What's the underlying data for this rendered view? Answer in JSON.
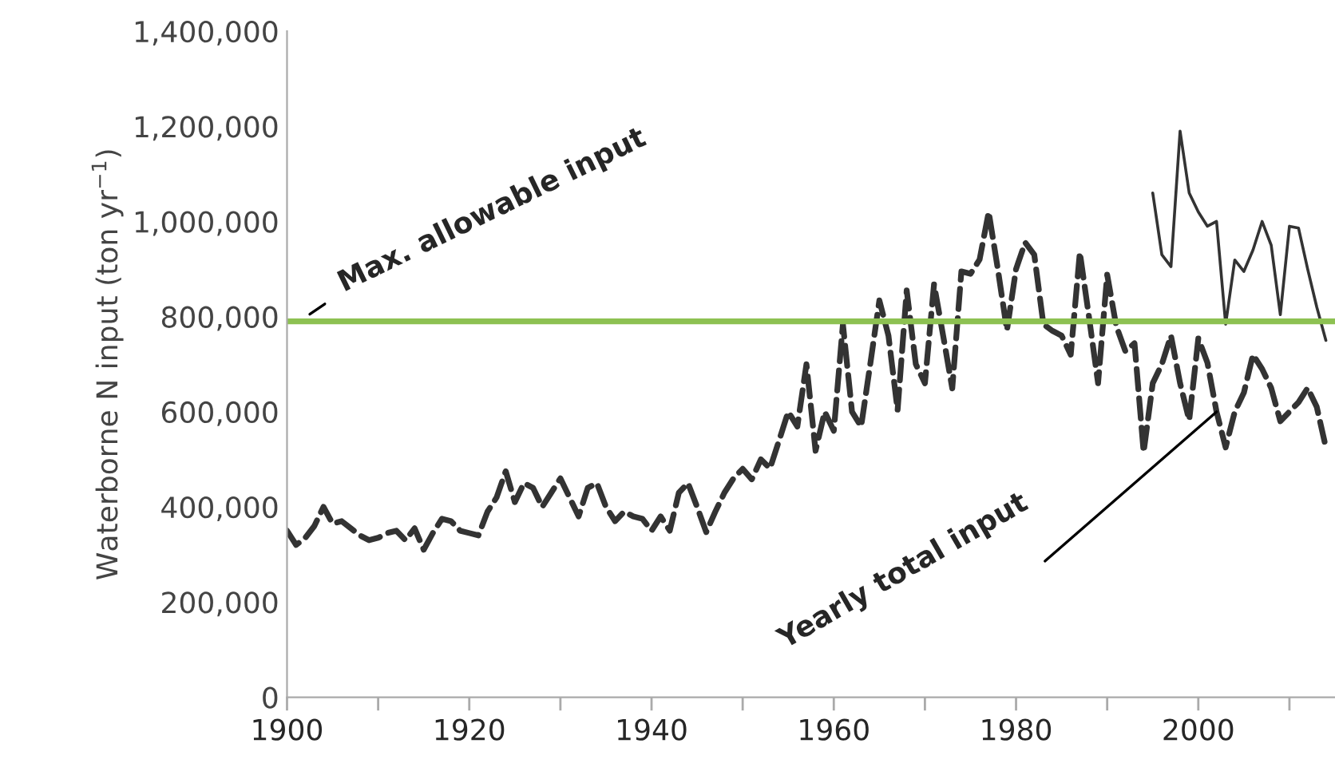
{
  "chart_data": {
    "type": "line",
    "ylabel": "Waterborne N input (ton yr$^{−1}$)",
    "xlim": [
      1900,
      2015
    ],
    "xticks": [
      1900,
      {
        "value": 1910,
        "label": null
      },
      1920,
      {
        "value": 1930,
        "label": null
      },
      1940,
      {
        "value": 1950,
        "label": null
      },
      1960,
      {
        "value": 1970,
        "label": null
      },
      1980,
      {
        "value": 1990,
        "label": null
      },
      2000,
      {
        "value": 2010,
        "label": null
      }
    ],
    "ylim": [
      0,
      1400000
    ],
    "yticks": [
      {
        "value": 0,
        "label": "0"
      },
      {
        "value": 200000,
        "label": "200,000"
      },
      {
        "value": 400000,
        "label": "400,000"
      },
      {
        "value": 600000,
        "label": "600,000"
      },
      {
        "value": 800000,
        "label": "800,000"
      },
      {
        "value": 1000000,
        "label": "1,000,000"
      },
      {
        "value": 1200000,
        "label": "1,200,000"
      },
      {
        "value": 1400000,
        "label": "1,400,000"
      }
    ],
    "grid": false,
    "legend": false,
    "series": [
      {
        "color": "#333333",
        "line_style": "dashed",
        "x": [
          1900,
          1901,
          1902,
          1903,
          1904,
          1905,
          1906,
          1907,
          1908,
          1909,
          1910,
          1911,
          1912,
          1913,
          1914,
          1915,
          1916,
          1917,
          1918,
          1919,
          1920,
          1921,
          1922,
          1923,
          1924,
          1925,
          1926,
          1927,
          1928,
          1929,
          1930,
          1931,
          1932,
          1933,
          1934,
          1935,
          1936,
          1937,
          1938,
          1939,
          1940,
          1941,
          1942,
          1943,
          1944,
          1945,
          1946,
          1947,
          1948,
          1949,
          1950,
          1951,
          1952,
          1953,
          1954,
          1955,
          1956,
          1957,
          1958,
          1959,
          1960,
          1961,
          1962,
          1963,
          1964,
          1965,
          1966,
          1967,
          1968,
          1969,
          1970,
          1971,
          1972,
          1973,
          1974,
          1975,
          1976,
          1977,
          1978,
          1979,
          1980,
          1981,
          1982,
          1983,
          1984,
          1985,
          1986,
          1987,
          1988,
          1989,
          1990,
          1991,
          1992,
          1993,
          1994,
          1995,
          1996,
          1997,
          1998,
          1999,
          2000,
          2001,
          2002,
          2003,
          2004,
          2005,
          2006,
          2007,
          2008,
          2009,
          2010,
          2011,
          2012,
          2013,
          2014
        ],
        "values": [
          350000,
          320000,
          335000,
          360000,
          400000,
          365000,
          370000,
          355000,
          340000,
          330000,
          335000,
          345000,
          350000,
          330000,
          355000,
          310000,
          345000,
          375000,
          370000,
          350000,
          345000,
          340000,
          390000,
          420000,
          475000,
          410000,
          450000,
          440000,
          400000,
          430000,
          460000,
          420000,
          380000,
          440000,
          450000,
          400000,
          370000,
          390000,
          380000,
          375000,
          350000,
          380000,
          350000,
          430000,
          450000,
          400000,
          347000,
          390000,
          430000,
          460000,
          480000,
          458000,
          500000,
          481000,
          540000,
          600000,
          569000,
          700000,
          518000,
          600000,
          560000,
          784000,
          600000,
          569000,
          700000,
          834000,
          760000,
          603000,
          855000,
          700000,
          660000,
          868000,
          760000,
          649000,
          895000,
          890000,
          920000,
          1020000,
          900000,
          771000,
          900000,
          956000,
          930000,
          784000,
          770000,
          760000,
          720000,
          935000,
          800000,
          660000,
          888000,
          780000,
          727000,
          744000,
          515000,
          660000,
          700000,
          760000,
          660000,
          582000,
          754000,
          703000,
          600000,
          525000,
          600000,
          640000,
          720000,
          690000,
          650000,
          580000,
          600000,
          620000,
          650000,
          610000,
          525000
        ]
      },
      {
        "color": "#333333",
        "line_style": "solid",
        "x": [
          1995,
          1996,
          1997,
          1998,
          1999,
          2000,
          2001,
          2002,
          2003,
          2004,
          2005,
          2006,
          2007,
          2008,
          2009,
          2010,
          2011,
          2012,
          2013,
          2014
        ],
        "values": [
          1060000,
          930000,
          905000,
          1190000,
          1060000,
          1020000,
          990000,
          1000000,
          784000,
          919000,
          895000,
          940000,
          1000000,
          950000,
          804000,
          990000,
          986000,
          900000,
          820000,
          750000
        ]
      }
    ],
    "ref_lines": [
      {
        "axis": "y",
        "value": 790000,
        "label": "Max. allowable input",
        "color": "#8dc152",
        "line_style": "solid"
      }
    ],
    "annotations": [
      {
        "text": "Yearly total input",
        "x": 2002,
        "y": 600000
      }
    ]
  }
}
